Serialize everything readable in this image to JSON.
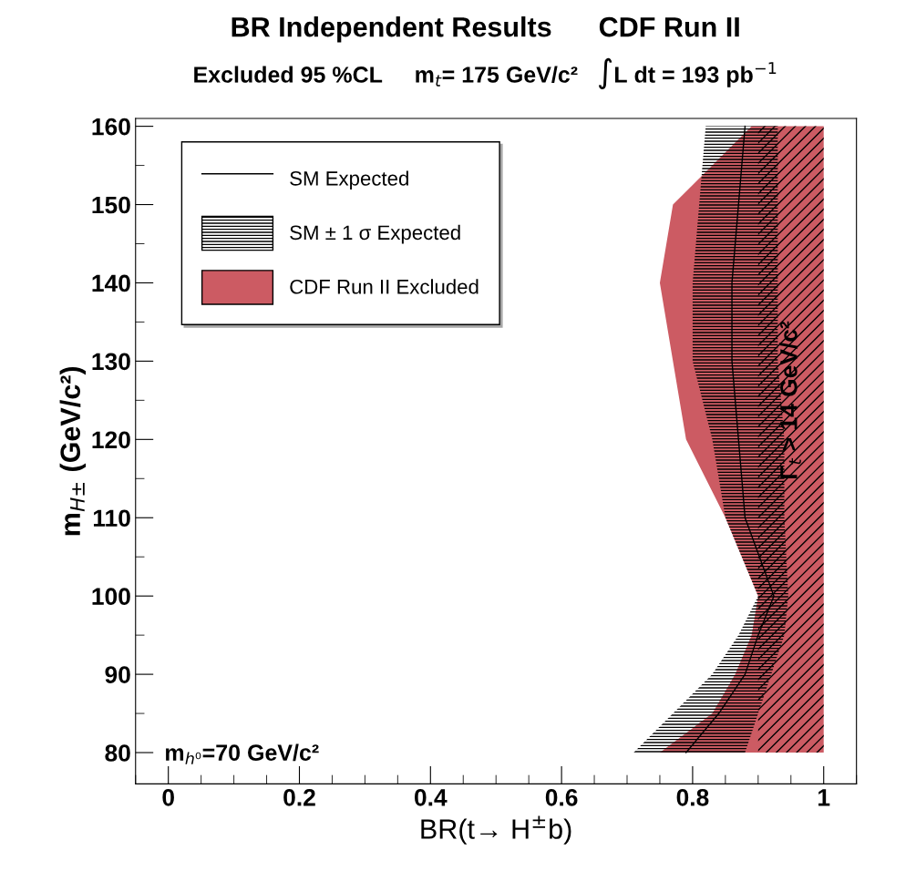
{
  "chart_data": {
    "type": "area",
    "orientation": "horizontal",
    "title": "BR Independent Results      CDF Run II",
    "subtitle": "Excluded 95 %CL     m$_{t}$= 175 GeV/c²   ∫L dt = 193 pb$^{−1}$",
    "xlabel": "BR(t→ H$^{±}$b)",
    "ylabel": "m$_{H±}$ (GeV/c²)",
    "annotations": [
      "m$_{h⁰}$=70 GeV/c²"
    ],
    "x": [
      80,
      85,
      90,
      95,
      100,
      110,
      120,
      130,
      140,
      150,
      160
    ],
    "series": [
      {
        "name": "CDF Run II Excluded",
        "color": "#cc5b63",
        "values": [
          null,
          null,
          null,
          null,
          null,
          null,
          null,
          null,
          null,
          null,
          null
        ],
        "lower": [
          0.75,
          0.83,
          0.865,
          0.89,
          0.9,
          0.85,
          0.79,
          0.77,
          0.75,
          0.77,
          0.89
        ],
        "upper": [
          1,
          1,
          1,
          1,
          1,
          1,
          1,
          1,
          1,
          1,
          1
        ]
      },
      {
        "name": "SM ± 1 σ Expected",
        "color": "#000000",
        "values": [
          null,
          null,
          null,
          null,
          null,
          null,
          null,
          null,
          null,
          null,
          null
        ],
        "lower": [
          0.71,
          0.77,
          0.83,
          0.87,
          0.9,
          0.85,
          0.83,
          0.8,
          0.8,
          0.81,
          0.82
        ],
        "upper": [
          0.88,
          0.9,
          0.92,
          0.94,
          0.946,
          0.94,
          0.94,
          0.93,
          0.93,
          0.93,
          0.93
        ]
      },
      {
        "name": "SM Expected",
        "type": "line",
        "color": "#000000",
        "values": [
          0.79,
          0.84,
          0.88,
          0.9,
          0.924,
          0.88,
          0.87,
          0.86,
          0.86,
          0.87,
          0.88
        ]
      }
    ],
    "bands": [
      {
        "axis": "x",
        "from": 0.9,
        "to": 1.0,
        "label": "Γ$_{t}$ > 14 GeV/c²",
        "color": "#000000"
      }
    ],
    "xlim": [
      -0.05,
      1.05
    ],
    "ylim": [
      76,
      161
    ],
    "xticks": [
      0,
      0.2,
      0.4,
      0.6,
      0.8,
      1
    ],
    "yticks": [
      80,
      90,
      100,
      110,
      120,
      130,
      140,
      150,
      160
    ],
    "legend": "top left",
    "grid": false
  }
}
